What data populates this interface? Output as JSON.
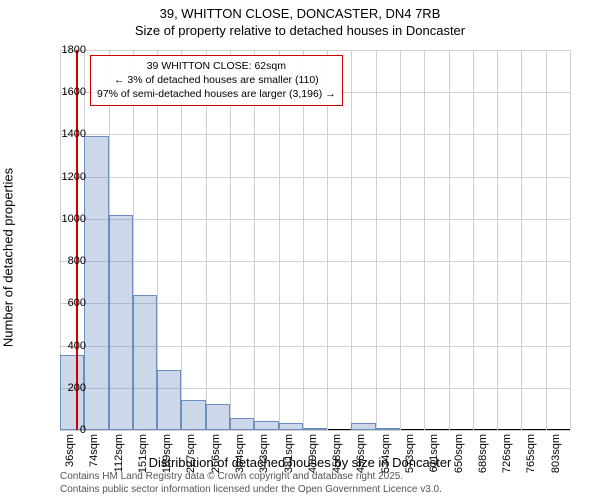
{
  "title_main": "39, WHITTON CLOSE, DONCASTER, DN4 7RB",
  "title_sub": "Size of property relative to detached houses in Doncaster",
  "y_label": "Number of detached properties",
  "x_label": "Distribution of detached houses by size in Doncaster",
  "chart": {
    "type": "histogram",
    "ylim": [
      0,
      1800
    ],
    "ytick_step": 200,
    "bar_fill": "rgba(108, 142, 191, 0.35)",
    "bar_stroke": "#6c8ebf",
    "marker_color": "#cc0000",
    "marker_x": 62,
    "x_categories": [
      "36sqm",
      "74sqm",
      "112sqm",
      "151sqm",
      "189sqm",
      "227sqm",
      "266sqm",
      "304sqm",
      "343sqm",
      "381sqm",
      "419sqm",
      "458sqm",
      "496sqm",
      "534sqm",
      "573sqm",
      "611sqm",
      "650sqm",
      "688sqm",
      "726sqm",
      "765sqm",
      "803sqm"
    ],
    "bar_values": [
      355,
      1395,
      1020,
      640,
      285,
      140,
      125,
      55,
      45,
      35,
      10,
      0,
      35,
      5,
      0,
      0,
      0,
      0,
      0,
      0,
      0
    ],
    "grid_color": "#d0d0d0",
    "background": "#ffffff"
  },
  "info_box": {
    "line1": "39 WHITTON CLOSE: 62sqm",
    "line2": "← 3% of detached houses are smaller (110)",
    "line3": "97% of semi-detached houses are larger (3,196) →",
    "border_color": "#cc0000"
  },
  "credits": {
    "line1": "Contains HM Land Registry data © Crown copyright and database right 2025.",
    "line2": "Contains public sector information licensed under the Open Government Licence v3.0."
  },
  "y_ticks": [
    "0",
    "200",
    "400",
    "600",
    "800",
    "1000",
    "1200",
    "1400",
    "1600",
    "1800"
  ]
}
